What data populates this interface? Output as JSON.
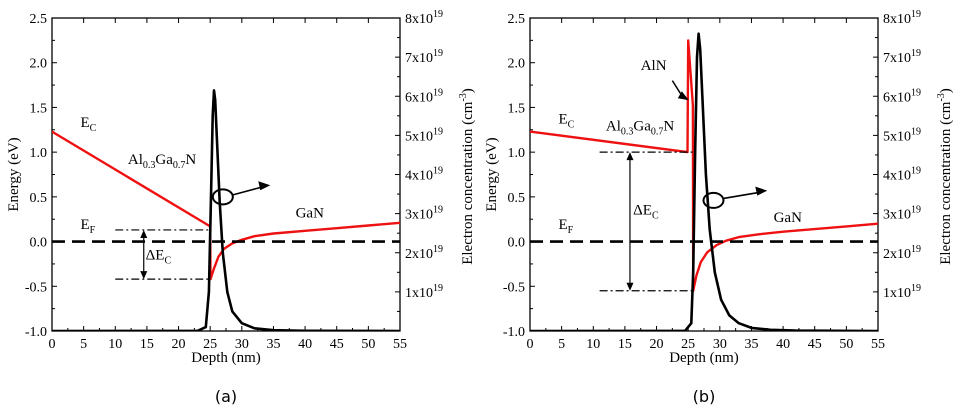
{
  "colors": {
    "band": "#ee1111",
    "concentration": "#000000",
    "fermi": "#000000"
  },
  "chart_data": [
    {
      "type": "line",
      "caption": "(a)",
      "xlabel": "Depth (nm)",
      "ylabel": "Energy (eV)",
      "y2label_main": "Electron concentration (cm",
      "y2label_sup": "-3",
      "y2label_end": ")",
      "xlim": [
        0,
        55
      ],
      "ylim": [
        -1.0,
        2.5
      ],
      "y2lim": [
        0,
        8e+19
      ],
      "x_ticks": [
        "0",
        "5",
        "10",
        "15",
        "20",
        "25",
        "30",
        "35",
        "40",
        "45",
        "50",
        "55"
      ],
      "y_ticks": [
        "-1.0",
        "-0.5",
        "0.0",
        "0.5",
        "1.0",
        "1.5",
        "2.0",
        "2.5"
      ],
      "y2_ticks": [
        {
          "mant": "1x10",
          "exp": "19"
        },
        {
          "mant": "2x10",
          "exp": "19"
        },
        {
          "mant": "3x10",
          "exp": "19"
        },
        {
          "mant": "4x10",
          "exp": "19"
        },
        {
          "mant": "5x10",
          "exp": "19"
        },
        {
          "mant": "6x10",
          "exp": "19"
        },
        {
          "mant": "7x10",
          "exp": "19"
        },
        {
          "mant": "8x10",
          "exp": "19"
        }
      ],
      "series": [
        {
          "role": "conduction-band",
          "axis": "left",
          "points": [
            [
              0,
              1.23
            ],
            [
              25,
              0.17
            ],
            [
              25.05,
              -0.42
            ],
            [
              25.6,
              -0.3
            ],
            [
              26.3,
              -0.17
            ],
            [
              27.2,
              -0.08
            ],
            [
              28.5,
              -0.02
            ],
            [
              30,
              0.02
            ],
            [
              32,
              0.06
            ],
            [
              35,
              0.09
            ],
            [
              40,
              0.12
            ],
            [
              45,
              0.15
            ],
            [
              50,
              0.18
            ],
            [
              55,
              0.21
            ]
          ]
        },
        {
          "role": "fermi-level",
          "axis": "left",
          "style": "dashed",
          "points": [
            [
              0,
              0
            ],
            [
              55,
              0
            ]
          ]
        },
        {
          "role": "electron-concentration",
          "axis": "right",
          "points": [
            [
              0,
              0
            ],
            [
              23,
              3e+16
            ],
            [
              24.3,
              1e+18
            ],
            [
              24.8,
              1e+19
            ],
            [
              25.1,
              3.2e+19
            ],
            [
              25.4,
              5.5e+19
            ],
            [
              25.6,
              6.15e+19
            ],
            [
              25.8,
              5.9e+19
            ],
            [
              26.1,
              4.8e+19
            ],
            [
              26.5,
              3.3e+19
            ],
            [
              27,
              2e+19
            ],
            [
              27.7,
              1e+19
            ],
            [
              28.5,
              5e+18
            ],
            [
              30,
              2e+18
            ],
            [
              32,
              7e+17
            ],
            [
              35,
              2e+17
            ],
            [
              40,
              5e+16
            ],
            [
              55,
              0
            ]
          ]
        }
      ],
      "delta_ec": {
        "x": 14.5,
        "y_top": 0.13,
        "y_bottom": -0.42,
        "x_from": 10,
        "x_to": 25
      },
      "annotations": {
        "ec": {
          "main": "E",
          "sub": "C",
          "x": 4.5,
          "y": 1.28
        },
        "alloy": {
          "a": "Al",
          "b": "0.3",
          "c": "Ga",
          "d": "0.7",
          "e": "N",
          "x": 12,
          "y": 0.87
        },
        "ef": {
          "main": "E",
          "sub": "F",
          "x": 4.5,
          "y": 0.14
        },
        "delta": {
          "main": "ΔE",
          "sub": "C",
          "x": 14.8,
          "y": -0.2
        },
        "gan": {
          "text": "GaN",
          "x": 38.5,
          "y": 0.27
        }
      },
      "ring_arrow": {
        "ring_x": 27,
        "ring_y": 0.5,
        "arrow_to_x": 34.5,
        "arrow_to_y": 0.63
      }
    },
    {
      "type": "line",
      "caption": "(b)",
      "xlabel": "Depth (nm)",
      "ylabel": "Energy (eV)",
      "y2label_main": "Electron concentration (cm",
      "y2label_sup": "-3",
      "y2label_end": ")",
      "xlim": [
        0,
        55
      ],
      "ylim": [
        -1.0,
        2.5
      ],
      "y2lim": [
        0,
        8e+19
      ],
      "x_ticks": [
        "0",
        "5",
        "10",
        "15",
        "20",
        "25",
        "30",
        "35",
        "40",
        "45",
        "50",
        "55"
      ],
      "y_ticks": [
        "-1.0",
        "-0.5",
        "0.0",
        "0.5",
        "1.0",
        "1.5",
        "2.0",
        "2.5"
      ],
      "y2_ticks": [
        {
          "mant": "1x10",
          "exp": "19"
        },
        {
          "mant": "2x10",
          "exp": "19"
        },
        {
          "mant": "3x10",
          "exp": "19"
        },
        {
          "mant": "4x10",
          "exp": "19"
        },
        {
          "mant": "5x10",
          "exp": "19"
        },
        {
          "mant": "6x10",
          "exp": "19"
        },
        {
          "mant": "7x10",
          "exp": "19"
        },
        {
          "mant": "8x10",
          "exp": "19"
        }
      ],
      "series": [
        {
          "role": "conduction-band",
          "axis": "left",
          "points": [
            [
              0,
              1.23
            ],
            [
              24.9,
              1.0
            ],
            [
              25.0,
              2.25
            ],
            [
              25.75,
              1.52
            ],
            [
              25.8,
              -0.55
            ],
            [
              26.3,
              -0.38
            ],
            [
              27,
              -0.23
            ],
            [
              28,
              -0.12
            ],
            [
              29.5,
              -0.04
            ],
            [
              31,
              0.01
            ],
            [
              33,
              0.05
            ],
            [
              36,
              0.08
            ],
            [
              40,
              0.11
            ],
            [
              45,
              0.14
            ],
            [
              50,
              0.17
            ],
            [
              55,
              0.2
            ]
          ]
        },
        {
          "role": "fermi-level",
          "axis": "left",
          "style": "dashed",
          "points": [
            [
              0,
              0
            ],
            [
              55,
              0
            ]
          ]
        },
        {
          "role": "electron-concentration",
          "axis": "right",
          "points": [
            [
              0,
              0
            ],
            [
              24.5,
              3e+16
            ],
            [
              25.5,
              2e+18
            ],
            [
              25.8,
              1.5e+19
            ],
            [
              26.1,
              4.5e+19
            ],
            [
              26.4,
              7e+19
            ],
            [
              26.65,
              7.6e+19
            ],
            [
              26.9,
              7.2e+19
            ],
            [
              27.3,
              5.8e+19
            ],
            [
              27.8,
              4e+19
            ],
            [
              28.4,
              2.6e+19
            ],
            [
              29.2,
              1.5e+19
            ],
            [
              30.2,
              8e+18
            ],
            [
              31.5,
              4e+18
            ],
            [
              33,
              2e+18
            ],
            [
              35,
              8e+17
            ],
            [
              38,
              3e+17
            ],
            [
              42,
              1e+17
            ],
            [
              55,
              0
            ]
          ]
        }
      ],
      "delta_ec": {
        "x": 15.8,
        "y_top": 1.0,
        "y_bottom": -0.55,
        "x_from": 11,
        "x_to": 25.8
      },
      "annotations": {
        "ec": {
          "main": "E",
          "sub": "C",
          "x": 4.5,
          "y": 1.32
        },
        "alloy": {
          "a": "Al",
          "b": "0.3",
          "c": "Ga",
          "d": "0.7",
          "e": "N",
          "x": 12,
          "y": 1.24
        },
        "aln": {
          "text": "AlN",
          "x": 17.5,
          "y": 1.92
        },
        "ef": {
          "main": "E",
          "sub": "F",
          "x": 4.5,
          "y": 0.14
        },
        "delta": {
          "main": "ΔE",
          "sub": "C",
          "x": 16.3,
          "y": 0.3
        },
        "gan": {
          "text": "GaN",
          "x": 38.5,
          "y": 0.22
        }
      },
      "aln_arrow": {
        "from_x": 22.5,
        "from_y": 1.8,
        "to_x": 25.1,
        "to_y": 1.58
      },
      "ring_arrow": {
        "ring_x": 29,
        "ring_y": 0.46,
        "arrow_to_x": 37.5,
        "arrow_to_y": 0.57
      }
    }
  ]
}
